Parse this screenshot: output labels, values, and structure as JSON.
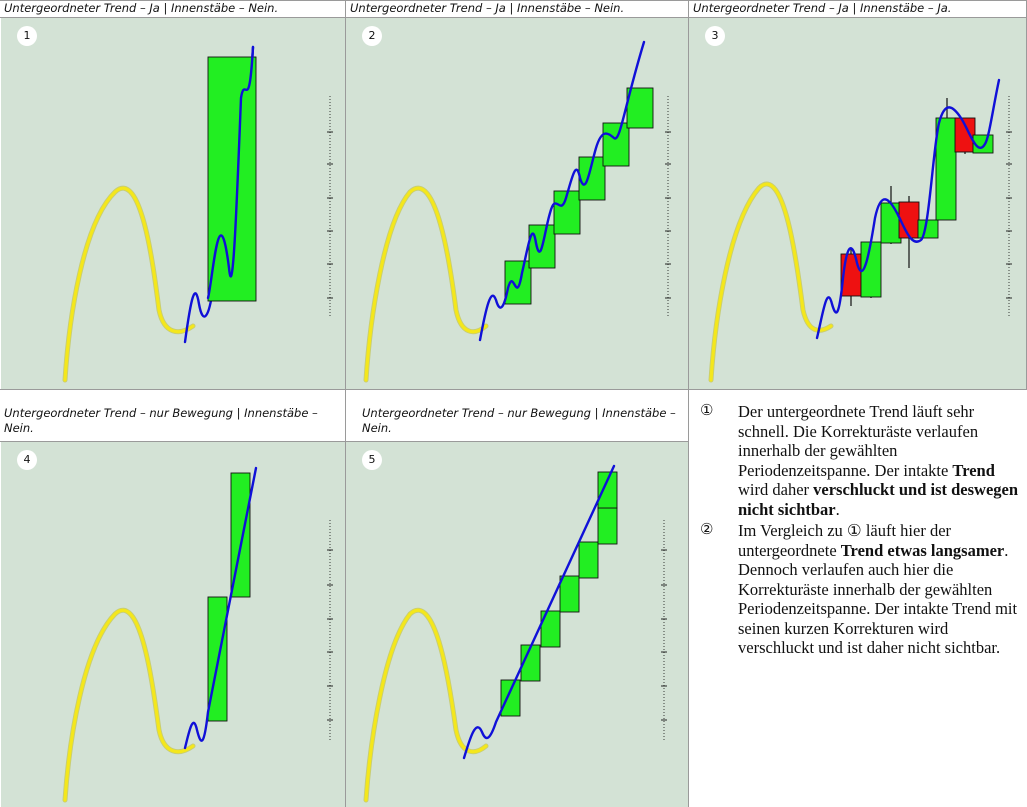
{
  "panels": [
    {
      "number": "1",
      "caption": "Untergeordneter Trend – Ja | Innenstäbe – Nein."
    },
    {
      "number": "2",
      "caption": "Untergeordneter Trend – Ja | Innenstäbe – Nein."
    },
    {
      "number": "3",
      "caption": "Untergeordneter Trend – Ja | Innenstäbe – Ja."
    },
    {
      "number": "4",
      "caption": "Untergeordneter Trend – nur Bewegung | Innenstäbe – Nein."
    },
    {
      "number": "5",
      "caption": "Untergeordneter Trend – nur Bewegung | Innenstäbe – Nein."
    }
  ],
  "notes": [
    {
      "marker": "①",
      "parts": [
        {
          "text": "Der untergeordnete Trend läuft sehr schnell. Die Korrekturäste verlaufen innerhalb der gewählten Periodenzeitspanne. Der intakte ",
          "bold": false
        },
        {
          "text": "Trend",
          "bold": true
        },
        {
          "text": " wird daher ",
          "bold": false
        },
        {
          "text": "verschluckt und ist deswegen nicht sichtbar",
          "bold": true
        },
        {
          "text": ".",
          "bold": false
        }
      ]
    },
    {
      "marker": "②",
      "parts": [
        {
          "text": "Im Vergleich zu ① läuft hier der untergeordnete ",
          "bold": false
        },
        {
          "text": "Trend etwas langsamer",
          "bold": true
        },
        {
          "text": ". Dennoch verlaufen auch hier die Korrekturäste innerhalb der gewählten Periodenzeitspanne. Der intakte Trend mit seinen kurzen Korrekturen wird verschluckt und ist daher nicht sichtbar.",
          "bold": false
        }
      ]
    }
  ],
  "colors": {
    "panel_bg": "#d3e2d5",
    "main_trend": "#f4e71c",
    "sub_trend": "#1010d8",
    "bull_bar": "#22ee22",
    "bear_bar": "#ee1111"
  }
}
